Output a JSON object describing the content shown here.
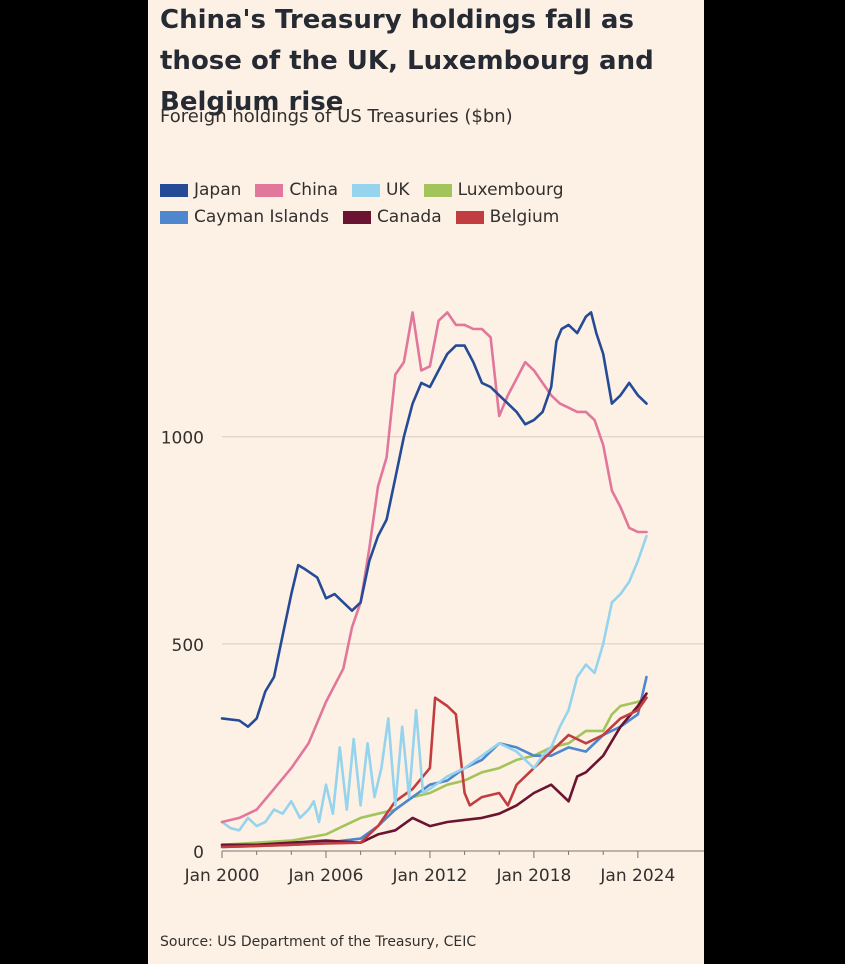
{
  "header": {
    "title": "China's Treasury holdings fall as those of the UK, Luxembourg and Belgium rise",
    "subtitle": "Foreign holdings of US Treasuries ($bn)"
  },
  "footer": {
    "source": "Source: US Department of the Treasury, CEIC"
  },
  "chart_data": {
    "type": "line",
    "title": "China's Treasury holdings fall as those of the UK, Luxembourg and Belgium rise",
    "subtitle": "Foreign holdings of US Treasuries ($bn)",
    "xlabel": "",
    "ylabel": "",
    "xlim": [
      2000,
      2024.7
    ],
    "ylim": [
      0,
      1330
    ],
    "y_ticks": [
      0,
      500,
      1000
    ],
    "x_ticks": [
      {
        "value": 2000,
        "label": "Jan 2000"
      },
      {
        "value": 2006,
        "label": "Jan 2006"
      },
      {
        "value": 2012,
        "label": "Jan 2012"
      },
      {
        "value": 2018,
        "label": "Jan 2018"
      },
      {
        "value": 2024,
        "label": "Jan 2024"
      }
    ],
    "grid": "horizontal",
    "legend_position": "top-left",
    "series": [
      {
        "name": "Japan",
        "color": "#264b96",
        "x": [
          2000,
          2001,
          2001.5,
          2002,
          2002.5,
          2003,
          2003.5,
          2004,
          2004.4,
          2004.8,
          2005.5,
          2006,
          2006.5,
          2007,
          2007.5,
          2008,
          2008.5,
          2009,
          2009.5,
          2010,
          2010.5,
          2011,
          2011.5,
          2012,
          2012.5,
          2013,
          2013.5,
          2014,
          2014.5,
          2015,
          2015.5,
          2016,
          2016.5,
          2017,
          2017.5,
          2018,
          2018.5,
          2019,
          2019.3,
          2019.6,
          2020,
          2020.5,
          2021,
          2021.3,
          2021.6,
          2022,
          2022.5,
          2023,
          2023.5,
          2024,
          2024.5
        ],
        "values": [
          320,
          315,
          300,
          320,
          385,
          420,
          520,
          620,
          690,
          680,
          660,
          610,
          620,
          600,
          580,
          600,
          700,
          760,
          800,
          900,
          1000,
          1080,
          1130,
          1120,
          1160,
          1200,
          1220,
          1220,
          1180,
          1130,
          1120,
          1100,
          1080,
          1060,
          1030,
          1040,
          1060,
          1120,
          1230,
          1260,
          1270,
          1250,
          1290,
          1300,
          1250,
          1200,
          1080,
          1100,
          1130,
          1100,
          1080
        ]
      },
      {
        "name": "China",
        "color": "#e1779b",
        "x": [
          2000,
          2001,
          2002,
          2003,
          2004,
          2005,
          2006,
          2007,
          2007.5,
          2008,
          2008.5,
          2009,
          2009.5,
          2010,
          2010.5,
          2011,
          2011.5,
          2012,
          2012.5,
          2013,
          2013.5,
          2014,
          2014.5,
          2015,
          2015.5,
          2016,
          2016.5,
          2017,
          2017.5,
          2018,
          2018.5,
          2019,
          2019.5,
          2020,
          2020.5,
          2021,
          2021.5,
          2022,
          2022.5,
          2023,
          2023.5,
          2024,
          2024.5
        ],
        "values": [
          70,
          80,
          100,
          150,
          200,
          260,
          360,
          440,
          540,
          600,
          730,
          880,
          950,
          1150,
          1180,
          1300,
          1160,
          1170,
          1280,
          1300,
          1270,
          1270,
          1260,
          1260,
          1240,
          1050,
          1100,
          1140,
          1180,
          1160,
          1130,
          1100,
          1080,
          1070,
          1060,
          1060,
          1040,
          980,
          870,
          830,
          780,
          770,
          770
        ]
      },
      {
        "name": "UK",
        "color": "#96d3ec",
        "x": [
          2000,
          2000.5,
          2001,
          2001.5,
          2002,
          2002.5,
          2003,
          2003.5,
          2004,
          2004.5,
          2005,
          2005.3,
          2005.6,
          2006,
          2006.4,
          2006.8,
          2007.2,
          2007.6,
          2008,
          2008.4,
          2008.8,
          2009.2,
          2009.6,
          2010,
          2010.4,
          2010.8,
          2011.2,
          2011.6,
          2012,
          2013,
          2014,
          2015,
          2016,
          2017,
          2018,
          2018.5,
          2019,
          2019.5,
          2020,
          2020.5,
          2021,
          2021.5,
          2022,
          2022.5,
          2023,
          2023.5,
          2024,
          2024.5
        ],
        "values": [
          70,
          55,
          50,
          80,
          60,
          70,
          100,
          90,
          120,
          80,
          100,
          120,
          70,
          160,
          90,
          250,
          100,
          270,
          110,
          260,
          130,
          200,
          320,
          110,
          300,
          130,
          340,
          140,
          150,
          180,
          200,
          230,
          260,
          240,
          200,
          230,
          250,
          300,
          340,
          420,
          450,
          430,
          500,
          600,
          620,
          650,
          700,
          760
        ]
      },
      {
        "name": "Luxembourg",
        "color": "#a3c45b",
        "x": [
          2000,
          2002,
          2004,
          2006,
          2007,
          2008,
          2009,
          2010,
          2011,
          2012,
          2013,
          2014,
          2015,
          2016,
          2017,
          2018,
          2019,
          2020,
          2021,
          2022,
          2022.5,
          2023,
          2024,
          2024.5
        ],
        "values": [
          15,
          20,
          25,
          40,
          60,
          80,
          90,
          100,
          130,
          140,
          160,
          170,
          190,
          200,
          220,
          230,
          250,
          260,
          290,
          290,
          330,
          350,
          360,
          370
        ]
      },
      {
        "name": "Cayman Islands",
        "color": "#4f87cf",
        "x": [
          2000,
          2002,
          2004,
          2006,
          2008,
          2009,
          2010,
          2011,
          2012,
          2013,
          2014,
          2015,
          2016,
          2017,
          2018,
          2019,
          2020,
          2021,
          2022,
          2023,
          2024,
          2024.5
        ],
        "values": [
          10,
          12,
          15,
          20,
          30,
          60,
          100,
          130,
          160,
          170,
          200,
          220,
          260,
          250,
          230,
          230,
          250,
          240,
          280,
          300,
          330,
          420
        ]
      },
      {
        "name": "Canada",
        "color": "#6b1431",
        "x": [
          2000,
          2002,
          2004,
          2006,
          2008,
          2009,
          2010,
          2011,
          2012,
          2013,
          2014,
          2015,
          2016,
          2017,
          2018,
          2019,
          2020,
          2020.5,
          2021,
          2022,
          2023,
          2024,
          2024.5
        ],
        "values": [
          15,
          15,
          20,
          25,
          20,
          40,
          50,
          80,
          60,
          70,
          75,
          80,
          90,
          110,
          140,
          160,
          120,
          180,
          190,
          230,
          300,
          350,
          380
        ]
      },
      {
        "name": "Belgium",
        "color": "#c23d3f",
        "x": [
          2000,
          2002,
          2004,
          2006,
          2008,
          2009,
          2010,
          2011,
          2012,
          2012.3,
          2013,
          2013.5,
          2014,
          2014.3,
          2015,
          2016,
          2016.5,
          2017,
          2018,
          2019,
          2020,
          2021,
          2022,
          2023,
          2024,
          2024.5
        ],
        "values": [
          10,
          12,
          15,
          18,
          20,
          60,
          120,
          150,
          200,
          370,
          350,
          330,
          140,
          110,
          130,
          140,
          110,
          160,
          200,
          240,
          280,
          260,
          280,
          320,
          340,
          370
        ]
      }
    ]
  }
}
